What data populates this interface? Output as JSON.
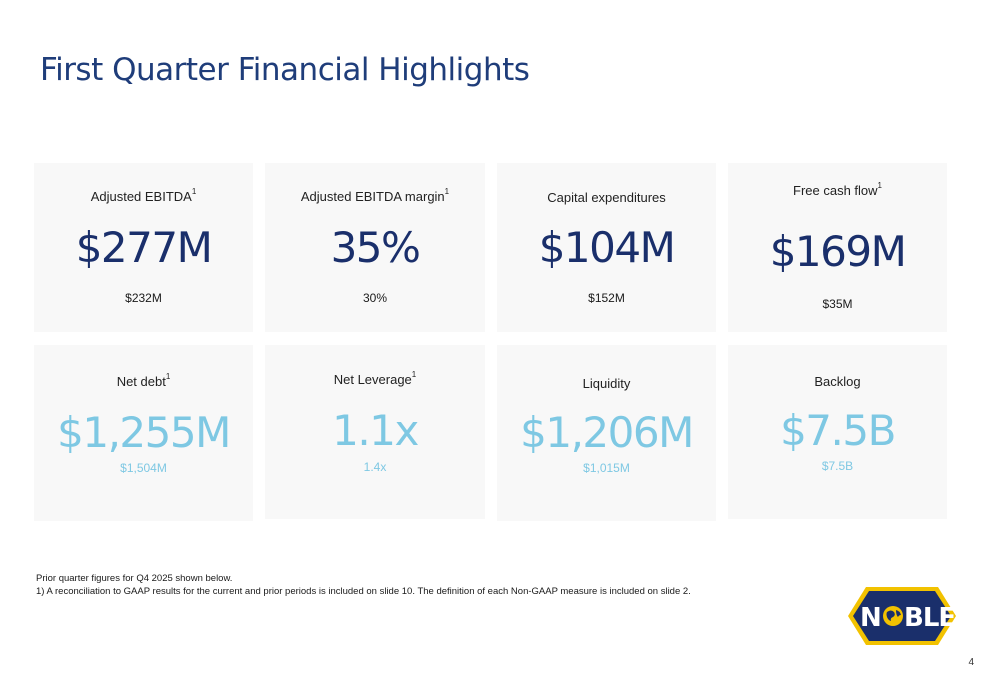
{
  "title": "First Quarter Financial Highlights",
  "cards_row1": [
    {
      "label": "Adjusted EBITDA",
      "sup": "1",
      "value": "$277M",
      "prior": "$232M"
    },
    {
      "label": "Adjusted EBITDA margin",
      "sup": "1",
      "value": "35%",
      "prior": "30%"
    },
    {
      "label": "Capital expenditures",
      "sup": "",
      "value": "$104M",
      "prior": "$152M"
    },
    {
      "label": "Free cash flow",
      "sup": "1",
      "value": "$169M",
      "prior": "$35M"
    }
  ],
  "cards_row2": [
    {
      "label": "Net debt",
      "sup": "1",
      "value": "$1,255M",
      "prior": "$1,504M"
    },
    {
      "label": "Net Leverage",
      "sup": "1",
      "value": "1.1x",
      "prior": "1.4x"
    },
    {
      "label": "Liquidity",
      "sup": "",
      "value": "$1,206M",
      "prior": "$1,015M"
    },
    {
      "label": "Backlog",
      "sup": "",
      "value": "$7.5B",
      "prior": "$7.5B"
    }
  ],
  "footnotes": {
    "line1": "Prior quarter figures for Q4 2025 shown below.",
    "line2": "1) A reconciliation to GAAP results for the current and prior periods is included on slide 10. The definition of each Non-GAAP measure is included on slide 2."
  },
  "logo": {
    "text": "NOBLE",
    "icon": "globe-icon",
    "outer_color": "#f2c200",
    "inner_color": "#1a2f6b"
  },
  "colors": {
    "title": "#1f3d7a",
    "value_dark": "#1a2f6b",
    "value_light": "#7ec8e3",
    "card_bg": "#f8f8f8"
  },
  "page_number": "4"
}
